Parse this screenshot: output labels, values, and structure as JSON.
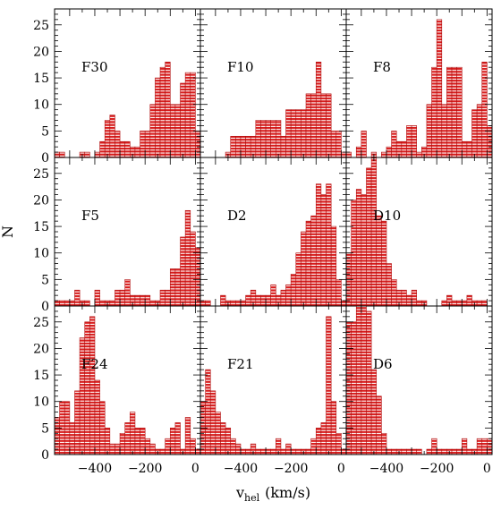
{
  "chart_data": {
    "type": "bar",
    "description_type": "histogram-grid",
    "xlabel": "v",
    "xlabel_subscript": "hel",
    "xlabel_unit": "(km/s)",
    "ylabel": "N",
    "xlim": [
      -560,
      20
    ],
    "ylim": [
      0,
      28
    ],
    "x_ticks": [
      -400,
      -200,
      0
    ],
    "x_tick_labels": [
      "−400",
      "−200",
      "0"
    ],
    "y_ticks": [
      0,
      5,
      10,
      15,
      20,
      25
    ],
    "y_tick_labels": [
      "0",
      "5",
      "10",
      "15",
      "20",
      "25"
    ],
    "bin_width": 20,
    "bar_fill": "#d81e1e",
    "bar_hatch_color": "#ffffff",
    "panels": [
      {
        "name": "F30",
        "row": 0,
        "col": 0,
        "bins": [
          [
            -560,
            1
          ],
          [
            -540,
            1
          ],
          [
            -460,
            1
          ],
          [
            -440,
            1
          ],
          [
            -400,
            1
          ],
          [
            -380,
            3
          ],
          [
            -360,
            7
          ],
          [
            -340,
            8
          ],
          [
            -320,
            5
          ],
          [
            -300,
            3
          ],
          [
            -280,
            3
          ],
          [
            -260,
            2
          ],
          [
            -240,
            2
          ],
          [
            -220,
            5
          ],
          [
            -200,
            5
          ],
          [
            -180,
            10
          ],
          [
            -160,
            15
          ],
          [
            -140,
            17
          ],
          [
            -120,
            18
          ],
          [
            -100,
            10
          ],
          [
            -80,
            10
          ],
          [
            -60,
            14
          ],
          [
            -40,
            16
          ],
          [
            -20,
            16
          ],
          [
            0,
            5
          ],
          [
            20,
            1
          ]
        ]
      },
      {
        "name": "F10",
        "row": 0,
        "col": 1,
        "bins": [
          [
            -460,
            1
          ],
          [
            -440,
            4
          ],
          [
            -420,
            4
          ],
          [
            -400,
            4
          ],
          [
            -380,
            4
          ],
          [
            -360,
            4
          ],
          [
            -340,
            7
          ],
          [
            -320,
            7
          ],
          [
            -300,
            7
          ],
          [
            -280,
            7
          ],
          [
            -260,
            7
          ],
          [
            -240,
            4
          ],
          [
            -220,
            9
          ],
          [
            -200,
            9
          ],
          [
            -180,
            9
          ],
          [
            -160,
            9
          ],
          [
            -140,
            12
          ],
          [
            -120,
            12
          ],
          [
            -100,
            18
          ],
          [
            -80,
            12
          ],
          [
            -60,
            12
          ],
          [
            -40,
            5
          ],
          [
            -20,
            5
          ],
          [
            0,
            1
          ],
          [
            20,
            1
          ]
        ]
      },
      {
        "name": "F8",
        "row": 0,
        "col": 2,
        "bins": [
          [
            -560,
            1
          ],
          [
            -520,
            2
          ],
          [
            -500,
            5
          ],
          [
            -460,
            1
          ],
          [
            -420,
            1
          ],
          [
            -400,
            2
          ],
          [
            -380,
            5
          ],
          [
            -360,
            3
          ],
          [
            -340,
            3
          ],
          [
            -320,
            6
          ],
          [
            -300,
            6
          ],
          [
            -280,
            1
          ],
          [
            -260,
            2
          ],
          [
            -240,
            10
          ],
          [
            -220,
            17
          ],
          [
            -200,
            26
          ],
          [
            -180,
            10
          ],
          [
            -160,
            17
          ],
          [
            -140,
            17
          ],
          [
            -120,
            17
          ],
          [
            -100,
            3
          ],
          [
            -80,
            3
          ],
          [
            -60,
            9
          ],
          [
            -40,
            10
          ],
          [
            -20,
            18
          ],
          [
            0,
            6
          ],
          [
            20,
            6
          ]
        ]
      },
      {
        "name": "F5",
        "row": 1,
        "col": 0,
        "bins": [
          [
            -560,
            1
          ],
          [
            -540,
            1
          ],
          [
            -520,
            1
          ],
          [
            -500,
            1
          ],
          [
            -480,
            3
          ],
          [
            -460,
            1
          ],
          [
            -440,
            1
          ],
          [
            -400,
            3
          ],
          [
            -380,
            1
          ],
          [
            -360,
            1
          ],
          [
            -340,
            1
          ],
          [
            -320,
            3
          ],
          [
            -300,
            3
          ],
          [
            -280,
            5
          ],
          [
            -260,
            2
          ],
          [
            -240,
            2
          ],
          [
            -220,
            2
          ],
          [
            -200,
            2
          ],
          [
            -180,
            1
          ],
          [
            -160,
            1
          ],
          [
            -140,
            3
          ],
          [
            -120,
            3
          ],
          [
            -100,
            7
          ],
          [
            -80,
            7
          ],
          [
            -60,
            13
          ],
          [
            -40,
            18
          ],
          [
            -20,
            14
          ],
          [
            0,
            11
          ],
          [
            20,
            1
          ]
        ]
      },
      {
        "name": "D2",
        "row": 1,
        "col": 1,
        "bins": [
          [
            -560,
            1
          ],
          [
            -540,
            1
          ],
          [
            -480,
            2
          ],
          [
            -460,
            1
          ],
          [
            -440,
            1
          ],
          [
            -420,
            1
          ],
          [
            -400,
            1
          ],
          [
            -380,
            2
          ],
          [
            -360,
            3
          ],
          [
            -340,
            2
          ],
          [
            -320,
            2
          ],
          [
            -300,
            2
          ],
          [
            -280,
            4
          ],
          [
            -260,
            2
          ],
          [
            -240,
            3
          ],
          [
            -220,
            4
          ],
          [
            -200,
            6
          ],
          [
            -180,
            10
          ],
          [
            -160,
            14
          ],
          [
            -140,
            16
          ],
          [
            -120,
            17
          ],
          [
            -100,
            23
          ],
          [
            -80,
            21
          ],
          [
            -60,
            23
          ],
          [
            -40,
            15
          ],
          [
            -20,
            5
          ],
          [
            0,
            1
          ]
        ]
      },
      {
        "name": "D10",
        "row": 1,
        "col": 2,
        "bins": [
          [
            -560,
            10
          ],
          [
            -540,
            20
          ],
          [
            -520,
            22
          ],
          [
            -500,
            21
          ],
          [
            -480,
            26
          ],
          [
            -460,
            30
          ],
          [
            -440,
            17
          ],
          [
            -420,
            16
          ],
          [
            -400,
            8
          ],
          [
            -380,
            5
          ],
          [
            -360,
            3
          ],
          [
            -340,
            3
          ],
          [
            -320,
            2
          ],
          [
            -300,
            3
          ],
          [
            -280,
            1
          ],
          [
            -260,
            1
          ],
          [
            -180,
            1
          ],
          [
            -160,
            2
          ],
          [
            -140,
            1
          ],
          [
            -120,
            1
          ],
          [
            -100,
            1
          ],
          [
            -80,
            2
          ],
          [
            -60,
            1
          ],
          [
            -40,
            1
          ],
          [
            -20,
            1
          ]
        ]
      },
      {
        "name": "F24",
        "row": 2,
        "col": 0,
        "bins": [
          [
            -560,
            7
          ],
          [
            -540,
            10
          ],
          [
            -520,
            10
          ],
          [
            -500,
            6
          ],
          [
            -480,
            12
          ],
          [
            -460,
            22
          ],
          [
            -440,
            25
          ],
          [
            -420,
            26
          ],
          [
            -400,
            14
          ],
          [
            -380,
            10
          ],
          [
            -360,
            5
          ],
          [
            -340,
            2
          ],
          [
            -320,
            2
          ],
          [
            -300,
            4
          ],
          [
            -280,
            6
          ],
          [
            -260,
            8
          ],
          [
            -240,
            5
          ],
          [
            -220,
            5
          ],
          [
            -200,
            3
          ],
          [
            -180,
            2
          ],
          [
            -160,
            1
          ],
          [
            -140,
            1
          ],
          [
            -120,
            3
          ],
          [
            -100,
            5
          ],
          [
            -80,
            6
          ],
          [
            -60,
            1
          ],
          [
            -40,
            7
          ],
          [
            -20,
            3
          ],
          [
            0,
            1
          ],
          [
            20,
            1
          ]
        ]
      },
      {
        "name": "F21",
        "row": 2,
        "col": 1,
        "bins": [
          [
            -560,
            10
          ],
          [
            -540,
            16
          ],
          [
            -520,
            12
          ],
          [
            -500,
            8
          ],
          [
            -480,
            6
          ],
          [
            -460,
            5
          ],
          [
            -440,
            3
          ],
          [
            -420,
            2
          ],
          [
            -400,
            1
          ],
          [
            -380,
            1
          ],
          [
            -360,
            2
          ],
          [
            -340,
            1
          ],
          [
            -320,
            1
          ],
          [
            -300,
            1
          ],
          [
            -280,
            1
          ],
          [
            -260,
            3
          ],
          [
            -240,
            1
          ],
          [
            -220,
            2
          ],
          [
            -200,
            1
          ],
          [
            -180,
            1
          ],
          [
            -160,
            1
          ],
          [
            -140,
            1
          ],
          [
            -120,
            3
          ],
          [
            -100,
            5
          ],
          [
            -80,
            6
          ],
          [
            -60,
            26
          ],
          [
            -40,
            10
          ],
          [
            -20,
            4
          ],
          [
            0,
            1
          ]
        ]
      },
      {
        "name": "D6",
        "row": 2,
        "col": 2,
        "bins": [
          [
            -560,
            25
          ],
          [
            -540,
            25
          ],
          [
            -520,
            28
          ],
          [
            -500,
            28
          ],
          [
            -480,
            27
          ],
          [
            -460,
            16
          ],
          [
            -440,
            11
          ],
          [
            -420,
            4
          ],
          [
            -400,
            1
          ],
          [
            -380,
            1
          ],
          [
            -360,
            1
          ],
          [
            -340,
            1
          ],
          [
            -320,
            1
          ],
          [
            -300,
            1
          ],
          [
            -280,
            1
          ],
          [
            -240,
            1
          ],
          [
            -220,
            3
          ],
          [
            -200,
            1
          ],
          [
            -180,
            1
          ],
          [
            -160,
            1
          ],
          [
            -140,
            1
          ],
          [
            -120,
            1
          ],
          [
            -100,
            3
          ],
          [
            -80,
            1
          ],
          [
            -60,
            1
          ],
          [
            -40,
            3
          ],
          [
            -20,
            3
          ],
          [
            0,
            3
          ],
          [
            20,
            1
          ]
        ]
      }
    ]
  }
}
